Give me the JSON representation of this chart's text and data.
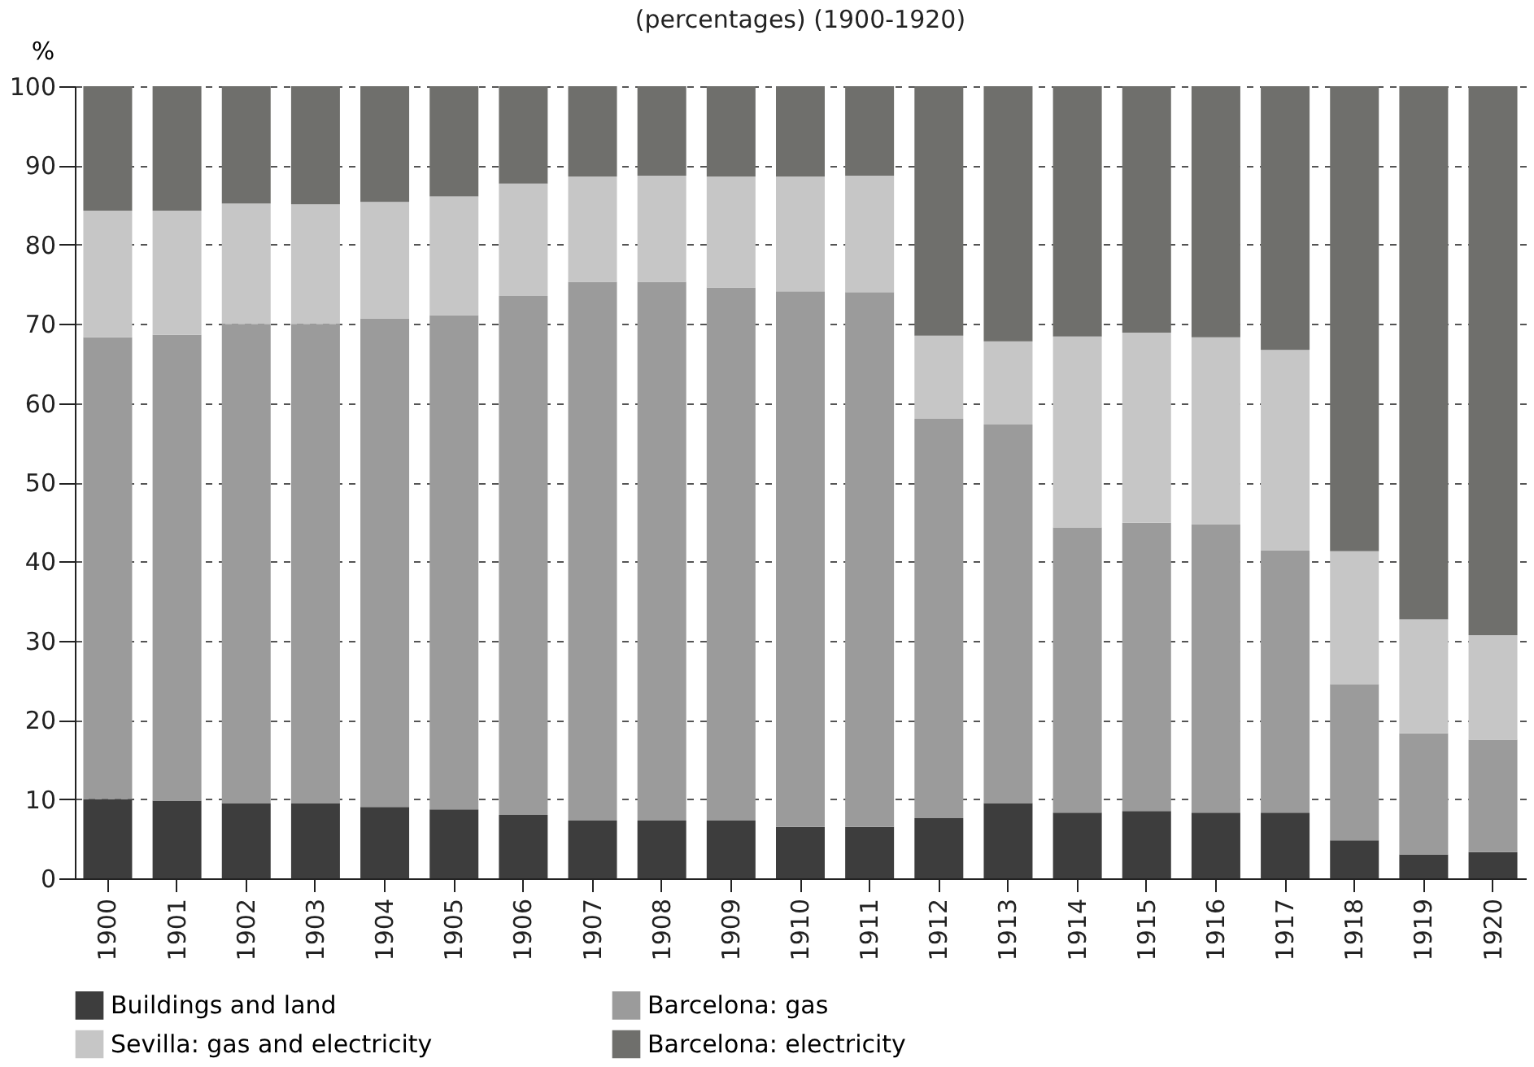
{
  "chart_data": {
    "type": "bar",
    "stacked": true,
    "title": "(percentages) (1900-1920)",
    "ylabel": "%",
    "categories": [
      "1900",
      "1901",
      "1902",
      "1903",
      "1904",
      "1905",
      "1906",
      "1907",
      "1908",
      "1909",
      "1910",
      "1911",
      "1912",
      "1913",
      "1914",
      "1915",
      "1916",
      "1917",
      "1918",
      "1919",
      "1920"
    ],
    "series": [
      {
        "name": "Buildings and land",
        "color": "#3d3d3d",
        "values": [
          10,
          9.8,
          9.5,
          9.5,
          9,
          8.7,
          8,
          7.3,
          7.3,
          7.3,
          6.5,
          6.5,
          7.6,
          9.5,
          8.3,
          8.5,
          8.3,
          8.3,
          4.8,
          3,
          3.3
        ]
      },
      {
        "name": "Barcelona: gas",
        "color": "#9b9b9b",
        "values": [
          58.3,
          58.8,
          60.5,
          60.5,
          61.7,
          62.4,
          65.5,
          68,
          68,
          67.3,
          67.6,
          67.5,
          50.4,
          47.8,
          36,
          36.4,
          36.4,
          33.1,
          19.7,
          15.3,
          14.2
        ]
      },
      {
        "name": "Sevilla: gas and electricity",
        "color": "#c6c6c6",
        "values": [
          16,
          15.7,
          15.2,
          15.1,
          14.7,
          15,
          14.2,
          13.3,
          13.4,
          14,
          14.5,
          14.7,
          10.5,
          10.5,
          24.1,
          24,
          23.6,
          25.3,
          16.8,
          14.4,
          13.2
        ]
      },
      {
        "name": "Barcelona: electricity",
        "color": "#6f6f6c",
        "values": [
          15.7,
          15.7,
          14.8,
          14.9,
          14.6,
          13.9,
          12.3,
          11.4,
          11.3,
          11.4,
          11.4,
          11.3,
          31.5,
          32.2,
          31.6,
          31.1,
          31.7,
          33.3,
          58.7,
          67.3,
          69.3
        ]
      }
    ],
    "ylim": [
      0,
      100
    ],
    "yticks": [
      0,
      10,
      20,
      30,
      40,
      50,
      60,
      70,
      80,
      90,
      100
    ],
    "grid": "y",
    "legend": "bottom"
  }
}
